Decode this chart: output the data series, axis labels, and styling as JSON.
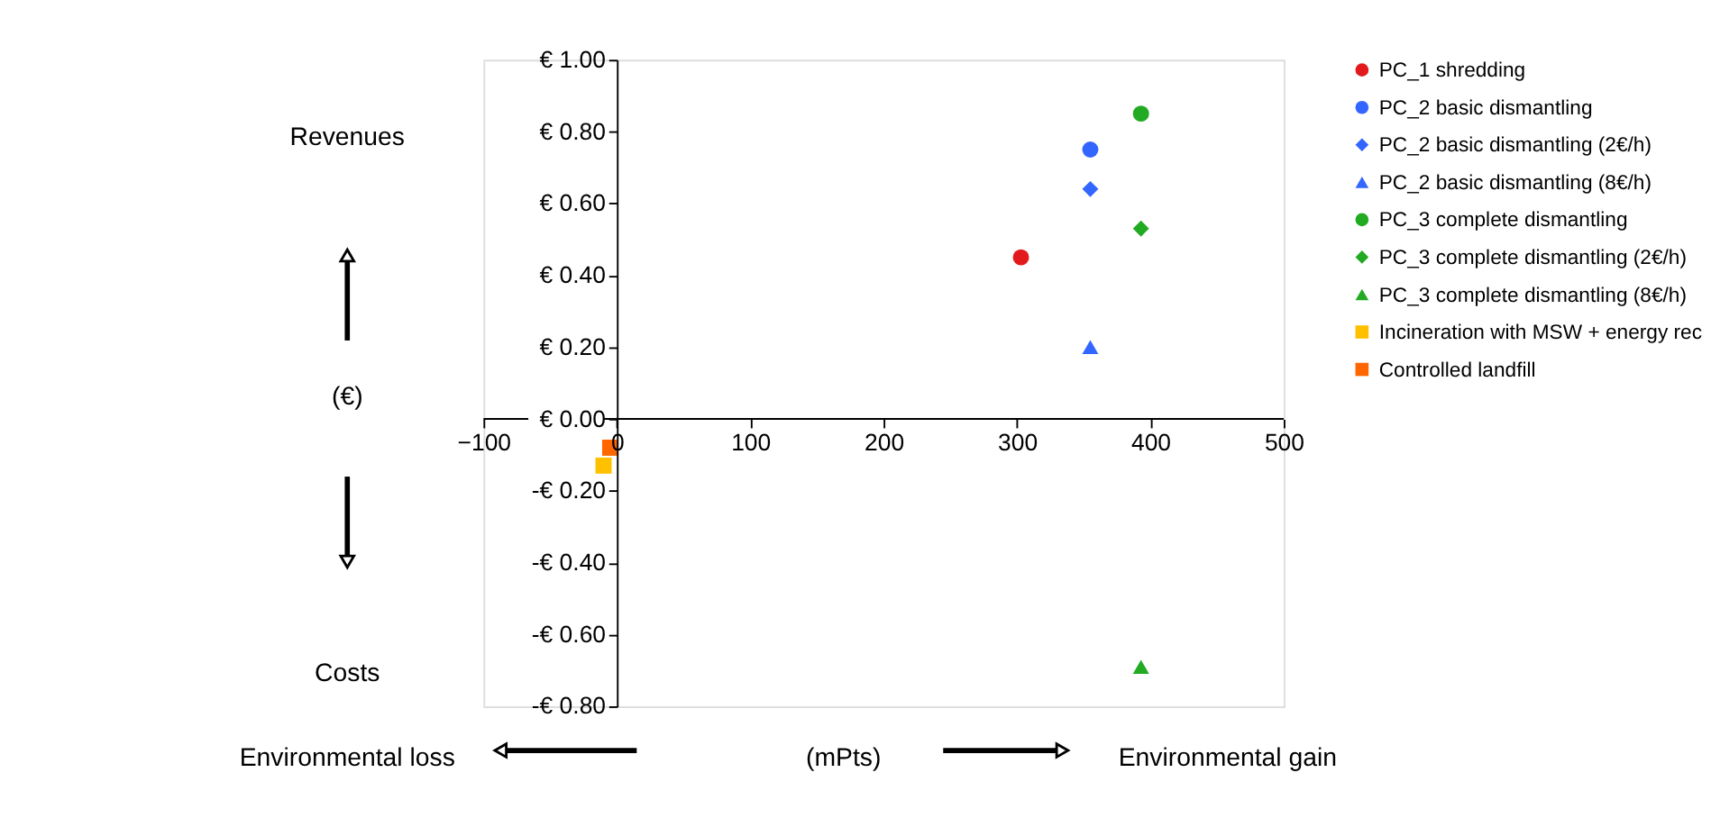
{
  "chart_data": {
    "type": "scatter",
    "xlim": [
      -100,
      500
    ],
    "xticks": [
      -100,
      0,
      100,
      200,
      300,
      400,
      500
    ],
    "ylim": [
      -0.8,
      1.0
    ],
    "yticks": [
      {
        "value": -0.8,
        "label": "-€ 0.80"
      },
      {
        "value": -0.6,
        "label": "-€ 0.60"
      },
      {
        "value": -0.4,
        "label": "-€ 0.40"
      },
      {
        "value": -0.2,
        "label": "-€ 0.20"
      },
      {
        "value": 0,
        "label": "€ 0.00"
      },
      {
        "value": 0.2,
        "label": "€ 0.20"
      },
      {
        "value": 0.4,
        "label": "€ 0.40"
      },
      {
        "value": 0.6,
        "label": "€ 0.60"
      },
      {
        "value": 0.8,
        "label": "€ 0.80"
      },
      {
        "value": 1.0,
        "label": "€ 1.00"
      }
    ],
    "grid": false,
    "legend": "right",
    "annotations": [
      "Revenues",
      "(€)",
      "Costs",
      "Environmental loss",
      "(mPts)",
      "Environmental gain"
    ],
    "series": [
      {
        "name": "PC_1 shredding",
        "color": "#e31a1c",
        "marker": "circle",
        "x": [
          303
        ],
        "values": [
          0.45
        ]
      },
      {
        "name": "PC_2 basic dismantling",
        "color": "#3366ff",
        "marker": "circle",
        "x": [
          355
        ],
        "values": [
          0.75
        ]
      },
      {
        "name": "PC_2 basic dismantling (2€/h)",
        "color": "#3366ff",
        "marker": "diamond",
        "x": [
          355
        ],
        "values": [
          0.64
        ]
      },
      {
        "name": "PC_2 basic dismantling (8€/h)",
        "color": "#3366ff",
        "marker": "triangle",
        "x": [
          355
        ],
        "values": [
          0.2
        ]
      },
      {
        "name": "PC_3 complete dismantling",
        "color": "#22aa22",
        "marker": "circle",
        "x": [
          393
        ],
        "values": [
          0.85
        ]
      },
      {
        "name": "PC_3 complete dismantling (2€/h)",
        "color": "#22aa22",
        "marker": "diamond",
        "x": [
          393
        ],
        "values": [
          0.53
        ]
      },
      {
        "name": "PC_3 complete dismantling (8€/h)",
        "color": "#22aa22",
        "marker": "triangle",
        "x": [
          393
        ],
        "values": [
          -0.69
        ]
      },
      {
        "name": "Incineration with MSW + energy rec",
        "color": "#ffc000",
        "marker": "square",
        "x": [
          -10
        ],
        "values": [
          -0.13
        ]
      },
      {
        "name": "Controlled landfill",
        "color": "#ff6600",
        "marker": "square",
        "x": [
          -5
        ],
        "values": [
          -0.08
        ]
      }
    ]
  }
}
